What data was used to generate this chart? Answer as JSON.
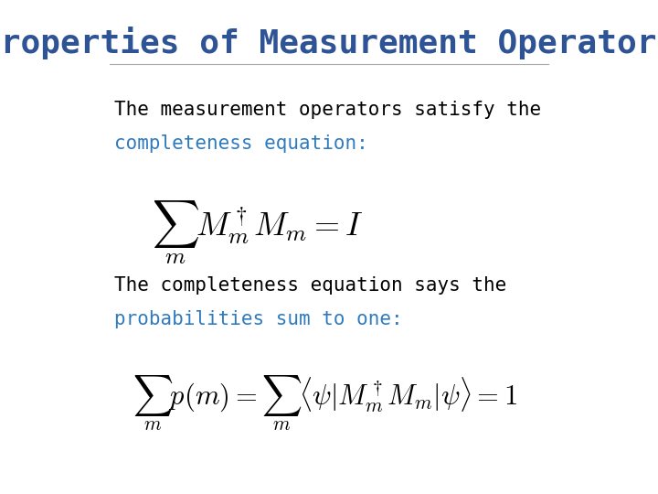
{
  "title": "Properties of Measurement Operators",
  "title_color": "#2F5496",
  "title_fontsize": 26,
  "title_font": "monospace",
  "bg_color": "#FFFFFF",
  "text1_line1": "The measurement operators satisfy the",
  "text1_line2_normal": "completeness equation",
  "text1_line2_colored": "completeness equation",
  "text_color_normal": "#000000",
  "text_color_blue": "#2F7BBF",
  "text_fontsize": 15,
  "text_font": "monospace",
  "eq1": "$\\sum_m M_m^\\dagger M_m = I$",
  "eq1_fontsize": 26,
  "text2_line1": "The completeness equation says the",
  "text2_line2": "probabilities sum to one",
  "text2_line2_colored": "probabilities sum to one",
  "eq2": "$\\sum_m p(m) = \\sum_m \\langle \\psi | M_m^\\dagger M_m | \\psi \\rangle = 1$",
  "eq2_fontsize": 22
}
